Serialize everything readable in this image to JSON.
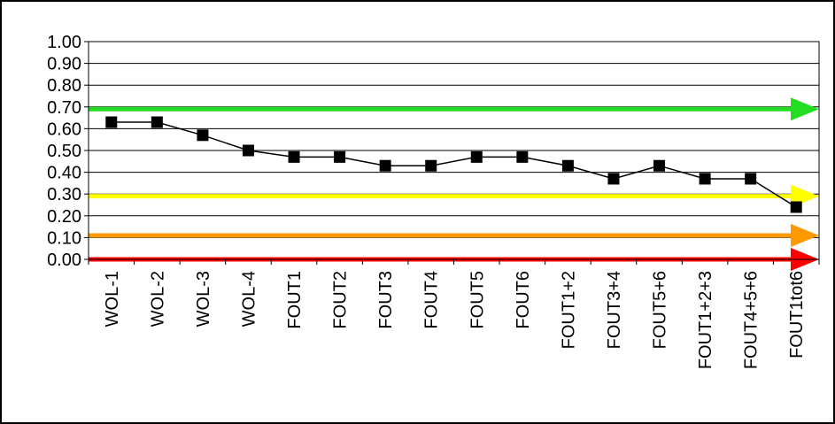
{
  "chart_data": {
    "type": "line",
    "title": "",
    "xlabel": "",
    "ylabel": "",
    "categories": [
      "WOL-1",
      "WOL-2",
      "WOL-3",
      "WOL-4",
      "FOUT1",
      "FOUT2",
      "FOUT3",
      "FOUT4",
      "FOUT5",
      "FOUT6",
      "FOUT1+2",
      "FOUT3+4",
      "FOUT5+6",
      "FOUT1+2+3",
      "FOUT4+5+6",
      "FOUT1tot6"
    ],
    "series": [
      {
        "values": [
          0.63,
          0.63,
          0.57,
          0.5,
          0.47,
          0.47,
          0.43,
          0.43,
          0.47,
          0.47,
          0.43,
          0.37,
          0.43,
          0.37,
          0.37,
          0.24
        ]
      }
    ],
    "ylim": [
      0,
      1
    ],
    "yticks": [
      "0.00",
      "0.10",
      "0.20",
      "0.30",
      "0.40",
      "0.50",
      "0.60",
      "0.70",
      "0.80",
      "0.90",
      "1.00"
    ],
    "grid": true,
    "legend": "none",
    "threshold_lines": [
      {
        "value": 0.69,
        "color": "#22dd22"
      },
      {
        "value": 0.29,
        "color": "#ffff00"
      },
      {
        "value": 0.11,
        "color": "#ff9900"
      },
      {
        "value": 0.0,
        "color": "#ff0000"
      }
    ],
    "marker_color": "#000000",
    "line_color": "#000000"
  }
}
